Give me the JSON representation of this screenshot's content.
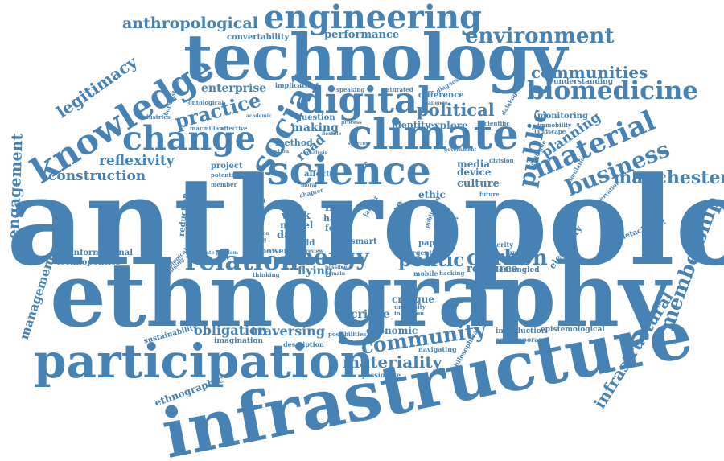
{
  "theme": {
    "word_color": "#4682b4",
    "background": "#ffffff"
  },
  "cloud": {
    "words": [
      {
        "id": "anthropology",
        "text": "anthropology"
      },
      {
        "id": "ethnography",
        "text": "ethnography"
      },
      {
        "id": "infrastructure",
        "text": "infrastructure"
      },
      {
        "id": "technology",
        "text": "technology"
      },
      {
        "id": "participation",
        "text": "participation"
      },
      {
        "id": "science",
        "text": "science"
      },
      {
        "id": "climate",
        "text": "climate"
      },
      {
        "id": "engineering",
        "text": "engineering"
      },
      {
        "id": "digital",
        "text": "digital"
      },
      {
        "id": "change",
        "text": "change"
      },
      {
        "id": "knowledge",
        "text": "knowledge"
      },
      {
        "id": "social",
        "text": "social"
      },
      {
        "id": "biomedicine",
        "text": "biomedicine"
      },
      {
        "id": "environment",
        "text": "environment"
      },
      {
        "id": "material",
        "text": "material"
      },
      {
        "id": "business",
        "text": "business"
      },
      {
        "id": "relation",
        "text": "relation"
      },
      {
        "id": "energy",
        "text": "energy"
      },
      {
        "id": "carbon",
        "text": "carbon"
      },
      {
        "id": "politic",
        "text": "politic"
      },
      {
        "id": "community",
        "text": "community"
      },
      {
        "id": "materiality",
        "text": "materiality"
      },
      {
        "id": "membership",
        "text": "membership"
      },
      {
        "id": "manchester",
        "text": "manchester"
      },
      {
        "id": "anthropological",
        "text": "anthropological"
      },
      {
        "id": "practice",
        "text": "practice"
      },
      {
        "id": "communities",
        "text": "communities"
      },
      {
        "id": "political",
        "text": "political"
      },
      {
        "id": "public",
        "text": "public"
      },
      {
        "id": "construction",
        "text": "construction"
      },
      {
        "id": "reflexivity",
        "text": "reflexivity"
      },
      {
        "id": "legitimacy",
        "text": "legitimacy"
      },
      {
        "id": "engagement",
        "text": "engagement"
      },
      {
        "id": "management",
        "text": "management"
      },
      {
        "id": "infrastructural",
        "text": "infrastructural"
      },
      {
        "id": "performance",
        "text": "performance"
      },
      {
        "id": "enterprise",
        "text": "enterprise"
      },
      {
        "id": "planning",
        "text": "planning"
      },
      {
        "id": "obligation",
        "text": "obligation"
      },
      {
        "id": "traversing",
        "text": "traversing"
      },
      {
        "id": "ethnographic",
        "text": "ethnographic"
      },
      {
        "id": "convertability",
        "text": "convertability"
      },
      {
        "id": "making",
        "text": "making"
      },
      {
        "id": "road",
        "text": "road"
      },
      {
        "id": "method",
        "text": "method"
      },
      {
        "id": "explore",
        "text": "explore"
      },
      {
        "id": "identity",
        "text": "identity"
      },
      {
        "id": "resource",
        "text": "resource"
      },
      {
        "id": "flying",
        "text": "flying"
      },
      {
        "id": "sacrifice",
        "text": "sacrifice"
      },
      {
        "id": "critique",
        "text": "critique"
      },
      {
        "id": "economic",
        "text": "economic"
      },
      {
        "id": "culture",
        "text": "culture"
      },
      {
        "id": "media",
        "text": "media"
      },
      {
        "id": "device",
        "text": "device"
      },
      {
        "id": "ethic",
        "text": "ethic"
      },
      {
        "id": "project",
        "text": "project"
      },
      {
        "id": "affect",
        "text": "affect"
      },
      {
        "id": "question",
        "text": "question"
      },
      {
        "id": "difference",
        "text": "difference"
      },
      {
        "id": "monitoring",
        "text": "monitoring"
      },
      {
        "id": "understanding",
        "text": "understanding"
      },
      {
        "id": "reduction",
        "text": "reduction"
      },
      {
        "id": "informational",
        "text": "informational"
      },
      {
        "id": "technopolitics",
        "text": "technopolitics"
      },
      {
        "id": "power",
        "text": "power"
      },
      {
        "id": "data",
        "text": "data"
      },
      {
        "id": "work",
        "text": "work"
      },
      {
        "id": "model",
        "text": "model"
      },
      {
        "id": "world",
        "text": "world"
      },
      {
        "id": "life",
        "text": "life"
      },
      {
        "id": "hack",
        "text": "hack"
      },
      {
        "id": "form",
        "text": "form"
      },
      {
        "id": "waste",
        "text": "waste"
      },
      {
        "id": "smart",
        "text": "smart"
      },
      {
        "id": "paper",
        "text": "paper"
      },
      {
        "id": "emergent",
        "text": "emergent"
      },
      {
        "id": "mobile",
        "text": "mobile"
      },
      {
        "id": "hacking",
        "text": "hacking"
      },
      {
        "id": "electricity",
        "text": "electricity"
      },
      {
        "id": "detachment",
        "text": "detachment"
      },
      {
        "id": "entangled",
        "text": "entangled"
      },
      {
        "id": "austerity",
        "text": "austerity"
      },
      {
        "id": "introduction",
        "text": "introduction"
      },
      {
        "id": "contemporary",
        "text": "contemporary"
      },
      {
        "id": "epistemological",
        "text": "epistemological"
      },
      {
        "id": "navigating",
        "text": "navigating"
      },
      {
        "id": "philosophical",
        "text": "philosophical"
      },
      {
        "id": "imagination",
        "text": "imagination"
      },
      {
        "id": "sustainability",
        "text": "sustainability"
      },
      {
        "id": "description",
        "text": "description"
      },
      {
        "id": "possibilities",
        "text": "possibilities"
      },
      {
        "id": "passionate",
        "text": "passionate"
      },
      {
        "id": "thinking",
        "text": "thinking"
      },
      {
        "id": "university",
        "text": "university"
      },
      {
        "id": "incursion",
        "text": "incursion"
      },
      {
        "id": "implication",
        "text": "implication"
      },
      {
        "id": "speaking",
        "text": "speaking"
      },
      {
        "id": "saturated",
        "text": "saturated"
      },
      {
        "id": "diagnostic",
        "text": "diagnostic"
      },
      {
        "id": "ontological",
        "text": "ontological"
      },
      {
        "id": "industries",
        "text": "industries"
      },
      {
        "id": "macmillan",
        "text": "macmillan"
      },
      {
        "id": "affective",
        "text": "affective"
      },
      {
        "id": "scientific",
        "text": "scientific"
      },
      {
        "id": "immobility",
        "text": "immobility"
      },
      {
        "id": "landscape",
        "text": "landscape"
      },
      {
        "id": "dalakoglou",
        "text": "dalakoglou"
      },
      {
        "id": "catalogue",
        "text": "catalogue"
      },
      {
        "id": "simulation",
        "text": "simulation"
      },
      {
        "id": "observation",
        "text": "observation"
      },
      {
        "id": "division",
        "text": "division"
      },
      {
        "id": "future",
        "text": "future"
      },
      {
        "id": "space",
        "text": "space"
      },
      {
        "id": "potential",
        "text": "potential"
      },
      {
        "id": "member",
        "text": "member"
      },
      {
        "id": "subject",
        "text": "subject"
      },
      {
        "id": "approach",
        "text": "approach"
      },
      {
        "id": "ecological",
        "text": "ecological"
      },
      {
        "id": "realising",
        "text": "realising"
      },
      {
        "id": "legitimate",
        "text": "legitimate"
      },
      {
        "id": "problem",
        "text": "problem"
      },
      {
        "id": "experience",
        "text": "experience"
      },
      {
        "id": "research",
        "text": "research"
      },
      {
        "id": "border",
        "text": "border"
      },
      {
        "id": "review",
        "text": "review"
      },
      {
        "id": "boringstake",
        "text": "boringstake"
      },
      {
        "id": "academic",
        "text": "academic"
      },
      {
        "id": "analysis",
        "text": "analysis"
      },
      {
        "id": "action",
        "text": "action"
      },
      {
        "id": "flexible",
        "text": "flexible"
      },
      {
        "id": "process",
        "text": "process"
      },
      {
        "id": "sources",
        "text": "sources"
      },
      {
        "id": "chapter",
        "text": "chapter"
      },
      {
        "id": "labour",
        "text": "labour"
      },
      {
        "id": "ground",
        "text": "ground"
      },
      {
        "id": "publishing",
        "text": "publishing"
      },
      {
        "id": "muorje",
        "text": "muorje"
      },
      {
        "id": "attention",
        "text": "attention"
      },
      {
        "id": "opening",
        "text": "opening"
      },
      {
        "id": "moral",
        "text": "moral"
      },
      {
        "id": "possible",
        "text": "possible"
      },
      {
        "id": "domain",
        "text": "domain"
      },
      {
        "id": "challenge",
        "text": "challenge"
      },
      {
        "id": "government",
        "text": "government"
      }
    ]
  }
}
